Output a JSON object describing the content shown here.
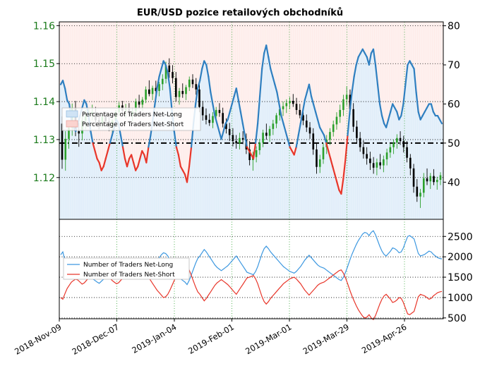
{
  "chart_data": [
    {
      "type": "candlestick-line",
      "title": "EUR/USD pozice retailových obchodníků",
      "x_ticks": [
        "2018-Nov-09",
        "2018-Dec-07",
        "2019-Jan-04",
        "2019-Feb-01",
        "2019-Mar-01",
        "2019-Mar-29",
        "2019-Apr-26"
      ],
      "y_left": {
        "ticks": [
          "1.12",
          "1.13",
          "1.14",
          "1.15",
          "1.16"
        ],
        "range": [
          1.109,
          1.161
        ]
      },
      "y_right": {
        "ticks": [
          "40",
          "50",
          "60",
          "70",
          "80"
        ],
        "range": [
          30.5,
          81
        ]
      },
      "reference_line": 50,
      "legend": {
        "position": "middle-left",
        "entries": [
          "Percentage of Traders Net-Long",
          "Percentage of Traders Net-Short"
        ]
      },
      "colors": {
        "long": "#2e7fc0",
        "short": "#e8362a",
        "up": "#2ca02c",
        "down": "#000000",
        "long_fill": "#cfe3f5",
        "short_fill": "#fbd3cf"
      },
      "net_long_pct": [
        65,
        66,
        64,
        61,
        60,
        56,
        54,
        53,
        55,
        57,
        59,
        61,
        60,
        57,
        53,
        50,
        48,
        46,
        45,
        43,
        44,
        46,
        48,
        50,
        52,
        54,
        56,
        55,
        52,
        49,
        46,
        44,
        46,
        47,
        45,
        43,
        44,
        46,
        48,
        47,
        45,
        49,
        52,
        56,
        60,
        64,
        67,
        69,
        71,
        70,
        68,
        64,
        58,
        53,
        49,
        47,
        44,
        43,
        42,
        40,
        44,
        49,
        55,
        60,
        64,
        66,
        69,
        71,
        70,
        67,
        63,
        60,
        57,
        55,
        53,
        51,
        53,
        55,
        56,
        58,
        60,
        62,
        64,
        61,
        58,
        55,
        52,
        49,
        48,
        47,
        46,
        50,
        55,
        62,
        69,
        73,
        75,
        72,
        69,
        67,
        65,
        63,
        60,
        57,
        55,
        53,
        51,
        49,
        48,
        47,
        49,
        52,
        55,
        58,
        61,
        63,
        65,
        62,
        60,
        58,
        56,
        54,
        53,
        52,
        50,
        48,
        46,
        44,
        42,
        40,
        38,
        37,
        41,
        46,
        52,
        58,
        63,
        67,
        70,
        72,
        73,
        74,
        73,
        72,
        70,
        73,
        74,
        70,
        65,
        60,
        57,
        55,
        54,
        56,
        58,
        60,
        59,
        58,
        56,
        57,
        60,
        65,
        70,
        71,
        70,
        69,
        63,
        58,
        56,
        57,
        58,
        59,
        60,
        60,
        58,
        57,
        57,
        56,
        55
      ],
      "candles": [
        [
          1.1342,
          1.1361,
          1.1223,
          1.1247
        ],
        [
          1.1247,
          1.1322,
          1.1218,
          1.1302
        ],
        [
          1.1302,
          1.1348,
          1.1276,
          1.1331
        ],
        [
          1.1331,
          1.1395,
          1.131,
          1.1384
        ],
        [
          1.1384,
          1.1402,
          1.1309,
          1.1322
        ],
        [
          1.1322,
          1.1344,
          1.1281,
          1.1316
        ],
        [
          1.1316,
          1.1362,
          1.1298,
          1.135
        ],
        [
          1.135,
          1.1378,
          1.1327,
          1.1362
        ],
        [
          1.1362,
          1.1382,
          1.1345,
          1.1368
        ],
        [
          1.1368,
          1.1392,
          1.1351,
          1.1372
        ],
        [
          1.1372,
          1.1386,
          1.1342,
          1.1351
        ],
        [
          1.1351,
          1.1366,
          1.1327,
          1.1344
        ],
        [
          1.1344,
          1.1368,
          1.1331,
          1.136
        ],
        [
          1.136,
          1.1374,
          1.134,
          1.1348
        ],
        [
          1.1348,
          1.1362,
          1.1322,
          1.1334
        ],
        [
          1.1334,
          1.1356,
          1.1316,
          1.135
        ],
        [
          1.135,
          1.1378,
          1.134,
          1.1372
        ],
        [
          1.1372,
          1.1398,
          1.1362,
          1.139
        ],
        [
          1.139,
          1.1402,
          1.1368,
          1.1376
        ],
        [
          1.1376,
          1.1394,
          1.1356,
          1.138
        ],
        [
          1.138,
          1.1396,
          1.1359,
          1.1366
        ],
        [
          1.1366,
          1.1384,
          1.1348,
          1.1374
        ],
        [
          1.1374,
          1.1408,
          1.1365,
          1.14
        ],
        [
          1.14,
          1.1418,
          1.1382,
          1.1392
        ],
        [
          1.1392,
          1.1412,
          1.1376,
          1.1405
        ],
        [
          1.1405,
          1.144,
          1.1396,
          1.1432
        ],
        [
          1.1432,
          1.1456,
          1.1414,
          1.142
        ],
        [
          1.142,
          1.1442,
          1.1404,
          1.1436
        ],
        [
          1.1436,
          1.1455,
          1.1419,
          1.1428
        ],
        [
          1.1428,
          1.1452,
          1.1414,
          1.1446
        ],
        [
          1.1446,
          1.1472,
          1.143,
          1.146
        ],
        [
          1.146,
          1.1505,
          1.1448,
          1.1495
        ],
        [
          1.1495,
          1.1514,
          1.1462,
          1.1478
        ],
        [
          1.1478,
          1.1496,
          1.1448,
          1.1462
        ],
        [
          1.1462,
          1.1478,
          1.14,
          1.1412
        ],
        [
          1.1412,
          1.1436,
          1.1392,
          1.1428
        ],
        [
          1.1428,
          1.1448,
          1.141,
          1.142
        ],
        [
          1.142,
          1.1444,
          1.1404,
          1.1438
        ],
        [
          1.1438,
          1.1466,
          1.1428,
          1.1458
        ],
        [
          1.1458,
          1.1472,
          1.1436,
          1.1446
        ],
        [
          1.1446,
          1.1462,
          1.1418,
          1.1432
        ],
        [
          1.1432,
          1.1446,
          1.1372,
          1.1386
        ],
        [
          1.1386,
          1.1402,
          1.135,
          1.1364
        ],
        [
          1.1364,
          1.1382,
          1.134,
          1.1352
        ],
        [
          1.1352,
          1.1368,
          1.1336,
          1.1344
        ],
        [
          1.1344,
          1.1372,
          1.133,
          1.1362
        ],
        [
          1.1362,
          1.1386,
          1.1348,
          1.1378
        ],
        [
          1.1378,
          1.1396,
          1.136,
          1.137
        ],
        [
          1.137,
          1.1384,
          1.1332,
          1.1342
        ],
        [
          1.1342,
          1.1356,
          1.1316,
          1.1328
        ],
        [
          1.1328,
          1.1344,
          1.1296,
          1.1312
        ],
        [
          1.1312,
          1.133,
          1.1282,
          1.1296
        ],
        [
          1.1296,
          1.1312,
          1.1276,
          1.129
        ],
        [
          1.129,
          1.1318,
          1.1274,
          1.1304
        ],
        [
          1.1304,
          1.1322,
          1.1288,
          1.13
        ],
        [
          1.13,
          1.1316,
          1.1262,
          1.1274
        ],
        [
          1.1274,
          1.1296,
          1.1232,
          1.1246
        ],
        [
          1.1246,
          1.1268,
          1.1218,
          1.1254
        ],
        [
          1.1254,
          1.1282,
          1.124,
          1.1272
        ],
        [
          1.1272,
          1.1302,
          1.126,
          1.1292
        ],
        [
          1.1292,
          1.1326,
          1.128,
          1.1318
        ],
        [
          1.1318,
          1.1342,
          1.13,
          1.131
        ],
        [
          1.131,
          1.1336,
          1.1294,
          1.1328
        ],
        [
          1.1328,
          1.1352,
          1.1312,
          1.1342
        ],
        [
          1.1342,
          1.137,
          1.133,
          1.1364
        ],
        [
          1.1364,
          1.139,
          1.135,
          1.138
        ],
        [
          1.138,
          1.14,
          1.1362,
          1.1388
        ],
        [
          1.1388,
          1.1406,
          1.137,
          1.1396
        ],
        [
          1.1396,
          1.1412,
          1.138,
          1.1402
        ],
        [
          1.1402,
          1.142,
          1.1386,
          1.1394
        ],
        [
          1.1394,
          1.141,
          1.1366,
          1.1378
        ],
        [
          1.1378,
          1.1394,
          1.1356,
          1.1364
        ],
        [
          1.1364,
          1.138,
          1.1338,
          1.135
        ],
        [
          1.135,
          1.1366,
          1.132,
          1.1332
        ],
        [
          1.1332,
          1.1346,
          1.1302,
          1.1316
        ],
        [
          1.1316,
          1.133,
          1.126,
          1.1274
        ],
        [
          1.1274,
          1.129,
          1.121,
          1.1228
        ],
        [
          1.1228,
          1.126,
          1.1212,
          1.1248
        ],
        [
          1.1248,
          1.129,
          1.1236,
          1.128
        ],
        [
          1.128,
          1.1312,
          1.1262,
          1.13
        ],
        [
          1.13,
          1.133,
          1.1286,
          1.132
        ],
        [
          1.132,
          1.135,
          1.1308,
          1.134
        ],
        [
          1.134,
          1.1372,
          1.1326,
          1.136
        ],
        [
          1.136,
          1.1392,
          1.1344,
          1.1378
        ],
        [
          1.1378,
          1.1418,
          1.1362,
          1.1406
        ],
        [
          1.1406,
          1.144,
          1.139,
          1.1418
        ],
        [
          1.1418,
          1.1432,
          1.1366,
          1.138
        ],
        [
          1.138,
          1.1396,
          1.132,
          1.1334
        ],
        [
          1.1334,
          1.135,
          1.129,
          1.1304
        ],
        [
          1.1304,
          1.132,
          1.1268,
          1.128
        ],
        [
          1.128,
          1.1298,
          1.125,
          1.1262
        ],
        [
          1.1262,
          1.128,
          1.1234,
          1.125
        ],
        [
          1.125,
          1.1268,
          1.122,
          1.1238
        ],
        [
          1.1238,
          1.1254,
          1.121,
          1.1226
        ],
        [
          1.1226,
          1.125,
          1.1206,
          1.124
        ],
        [
          1.124,
          1.1262,
          1.1222,
          1.1232
        ],
        [
          1.1232,
          1.1258,
          1.1214,
          1.1248
        ],
        [
          1.1248,
          1.1276,
          1.1232,
          1.1266
        ],
        [
          1.1266,
          1.129,
          1.1252,
          1.128
        ],
        [
          1.128,
          1.13,
          1.1262,
          1.1292
        ],
        [
          1.1292,
          1.1314,
          1.1276,
          1.1304
        ],
        [
          1.1304,
          1.1322,
          1.1286,
          1.1296
        ],
        [
          1.1296,
          1.131,
          1.1266,
          1.128
        ],
        [
          1.128,
          1.1296,
          1.124,
          1.1252
        ],
        [
          1.1252,
          1.1262,
          1.1206,
          1.1224
        ],
        [
          1.1224,
          1.1236,
          1.116,
          1.1176
        ],
        [
          1.1176,
          1.1196,
          1.1136,
          1.115
        ],
        [
          1.115,
          1.117,
          1.112,
          1.116
        ],
        [
          1.116,
          1.1212,
          1.1148,
          1.1198
        ],
        [
          1.1198,
          1.1224,
          1.118,
          1.119
        ],
        [
          1.119,
          1.1212,
          1.117,
          1.1204
        ],
        [
          1.1204,
          1.1222,
          1.118,
          1.1188
        ],
        [
          1.1188,
          1.1202,
          1.1168,
          1.1194
        ],
        [
          1.1194,
          1.1214,
          1.118,
          1.1206
        ]
      ]
    },
    {
      "type": "line",
      "y_ticks": [
        "500",
        "1000",
        "1500",
        "2000",
        "2500"
      ],
      "ylim": [
        480,
        2920
      ],
      "legend": {
        "position": "middle-left",
        "entries": [
          "Number of Traders Net-Long",
          "Number of Traders Net-Short"
        ]
      },
      "colors": {
        "long": "#3d98e0",
        "short": "#e8362a"
      },
      "net_long": [
        2050,
        2120,
        1900,
        1800,
        1700,
        1650,
        1620,
        1580,
        1600,
        1680,
        1750,
        1720,
        1650,
        1580,
        1500,
        1460,
        1420,
        1380,
        1350,
        1400,
        1450,
        1500,
        1560,
        1620,
        1680,
        1720,
        1760,
        1740,
        1680,
        1620,
        1560,
        1500,
        1540,
        1560,
        1520,
        1480,
        1500,
        1540,
        1580,
        1560,
        1520,
        1600,
        1680,
        1760,
        1840,
        1920,
        1980,
        2050,
        2100,
        2080,
        2020,
        1920,
        1800,
        1680,
        1580,
        1540,
        1460,
        1420,
        1380,
        1320,
        1420,
        1560,
        1700,
        1840,
        1960,
        2020,
        2100,
        2180,
        2120,
        2040,
        1960,
        1880,
        1800,
        1740,
        1700,
        1660,
        1700,
        1740,
        1780,
        1840,
        1900,
        1960,
        2020,
        1940,
        1860,
        1780,
        1700,
        1620,
        1600,
        1580,
        1560,
        1640,
        1760,
        1920,
        2080,
        2200,
        2260,
        2200,
        2120,
        2060,
        2000,
        1940,
        1880,
        1820,
        1760,
        1720,
        1680,
        1640,
        1620,
        1600,
        1640,
        1700,
        1760,
        1840,
        1920,
        1980,
        2040,
        1980,
        1920,
        1860,
        1800,
        1760,
        1740,
        1720,
        1680,
        1640,
        1600,
        1560,
        1520,
        1480,
        1440,
        1420,
        1500,
        1620,
        1760,
        1920,
        2060,
        2180,
        2300,
        2400,
        2480,
        2560,
        2600,
        2580,
        2520,
        2600,
        2640,
        2540,
        2400,
        2260,
        2140,
        2060,
        2020,
        2080,
        2140,
        2220,
        2200,
        2160,
        2100,
        2120,
        2220,
        2360,
        2500,
        2520,
        2480,
        2440,
        2260,
        2080,
        2020,
        2040,
        2060,
        2100,
        2140,
        2120,
        2060,
        2020,
        1980,
        1960,
        1950
      ],
      "net_short": [
        1000,
        960,
        1100,
        1220,
        1300,
        1380,
        1420,
        1450,
        1430,
        1380,
        1330,
        1360,
        1420,
        1480,
        1540,
        1580,
        1620,
        1660,
        1700,
        1660,
        1620,
        1580,
        1540,
        1480,
        1420,
        1380,
        1340,
        1360,
        1420,
        1480,
        1540,
        1600,
        1560,
        1540,
        1580,
        1620,
        1600,
        1560,
        1520,
        1540,
        1580,
        1500,
        1420,
        1340,
        1260,
        1180,
        1120,
        1060,
        1000,
        1020,
        1080,
        1180,
        1300,
        1420,
        1520,
        1560,
        1640,
        1680,
        1720,
        1780,
        1680,
        1540,
        1400,
        1260,
        1140,
        1080,
        1000,
        920,
        980,
        1060,
        1140,
        1220,
        1300,
        1360,
        1400,
        1440,
        1400,
        1360,
        1320,
        1260,
        1200,
        1140,
        1080,
        1160,
        1240,
        1320,
        1400,
        1480,
        1500,
        1520,
        1540,
        1460,
        1340,
        1180,
        1020,
        900,
        840,
        900,
        980,
        1040,
        1100,
        1160,
        1220,
        1280,
        1340,
        1380,
        1420,
        1460,
        1480,
        1500,
        1460,
        1400,
        1340,
        1260,
        1180,
        1120,
        1060,
        1120,
        1180,
        1240,
        1300,
        1340,
        1360,
        1380,
        1420,
        1460,
        1500,
        1540,
        1580,
        1620,
        1660,
        1680,
        1600,
        1480,
        1340,
        1180,
        1040,
        920,
        800,
        700,
        620,
        540,
        500,
        520,
        580,
        500,
        460,
        560,
        700,
        840,
        960,
        1040,
        1080,
        1020,
        960,
        880,
        900,
        940,
        1000,
        980,
        880,
        740,
        600,
        580,
        620,
        660,
        840,
        1020,
        1080,
        1060,
        1040,
        1000,
        960,
        980,
        1040,
        1080,
        1120,
        1140,
        1150
      ]
    }
  ]
}
